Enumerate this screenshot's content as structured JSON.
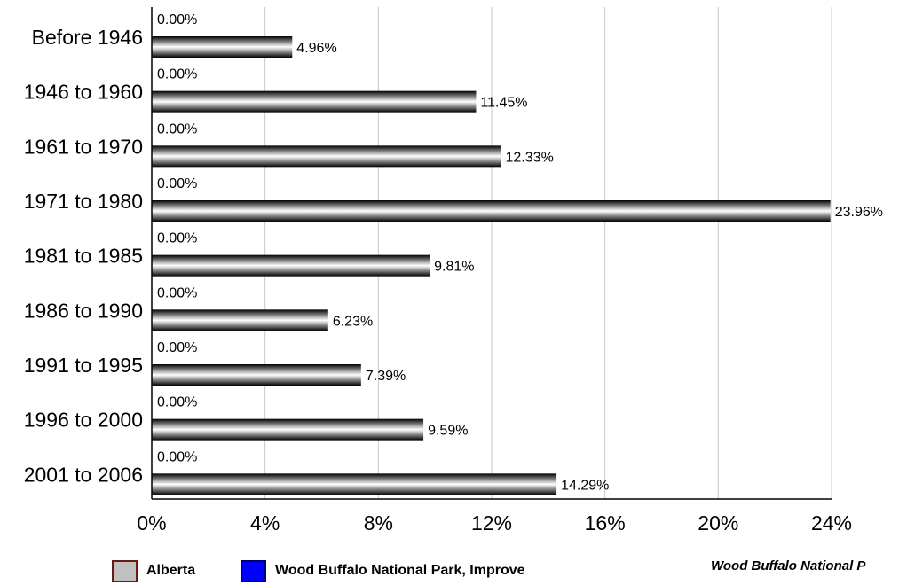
{
  "chart_data": {
    "type": "bar",
    "orientation": "horizontal",
    "categories": [
      "Before 1946",
      "1946 to 1960",
      "1961 to 1970",
      "1971 to 1980",
      "1981 to 1985",
      "1986 to 1990",
      "1991 to 1995",
      "1996 to 2000",
      "2001 to 2006"
    ],
    "series": [
      {
        "name": "Alberta",
        "values": [
          0,
          0,
          0,
          0,
          0,
          0,
          0,
          0,
          0
        ],
        "labels": [
          "0.00%",
          "0.00%",
          "0.00%",
          "0.00%",
          "0.00%",
          "0.00%",
          "0.00%",
          "0.00%",
          "0.00%"
        ],
        "swatch_fill": "#c0c0c0",
        "swatch_border": "#6b1a10"
      },
      {
        "name": "Wood Buffalo National Park, Improve",
        "values": [
          4.96,
          11.45,
          12.33,
          23.96,
          9.81,
          6.23,
          7.39,
          9.59,
          14.29
        ],
        "labels": [
          "4.96%",
          "11.45%",
          "12.33%",
          "23.96%",
          "9.81%",
          "6.23%",
          "7.39%",
          "9.59%",
          "14.29%"
        ],
        "swatch_fill": "#0000ff",
        "swatch_border": "#000066"
      }
    ],
    "xlim": [
      0,
      24
    ],
    "xticks": [
      "0%",
      "4%",
      "8%",
      "12%",
      "16%",
      "20%",
      "24%"
    ],
    "grid": true,
    "legend_position": "bottom-left",
    "colors": {
      "grid": "#c8c8c8",
      "axis": "#000000",
      "bar_dark": "#000000",
      "bar_light": "#ffffff"
    }
  },
  "footer_note": "Wood Buffalo National P"
}
